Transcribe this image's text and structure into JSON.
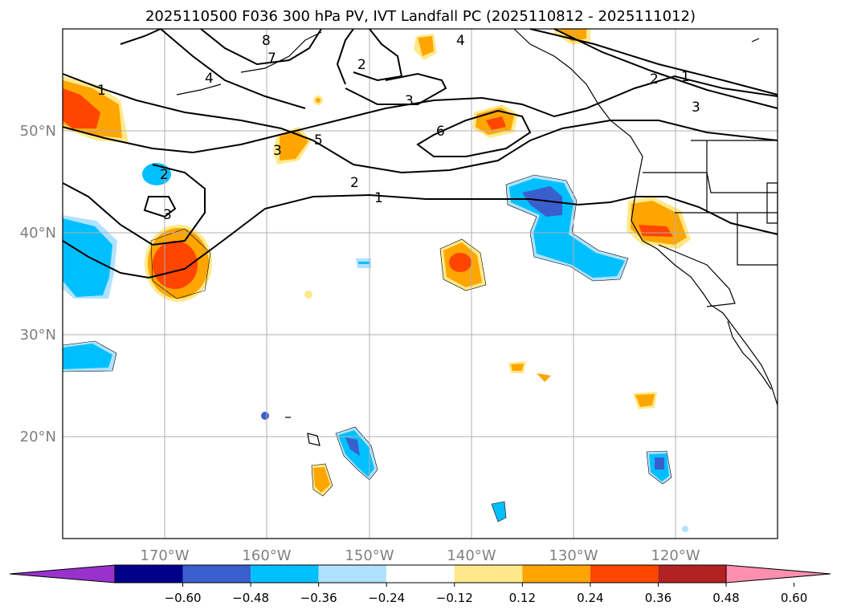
{
  "title": "2025110500 F036 300 hPa PV, IVT Landfall PC (2025110812 - 2025111012)",
  "map": {
    "lon_labels": [
      "170°W",
      "160°W",
      "150°W",
      "140°W",
      "130°W",
      "120°W"
    ],
    "lat_labels": [
      "50°N",
      "40°N",
      "30°N",
      "20°N"
    ]
  },
  "pv_contour_labels": [
    "1",
    "2",
    "3",
    "4",
    "5",
    "6",
    "7",
    "8"
  ],
  "colorbar": {
    "ticks": [
      "−0.60",
      "−0.48",
      "−0.36",
      "−0.24",
      "−0.12",
      "0.12",
      "0.24",
      "0.36",
      "0.48",
      "0.60"
    ],
    "colors": [
      "#9932cc",
      "#00008b",
      "#3a5fcd",
      "#00bfff",
      "#b0e2ff",
      "#ffffff",
      "#ffe98a",
      "#ffa500",
      "#ff4500",
      "#b22222",
      "#ff8fb1"
    ]
  },
  "colors": {
    "land_line": "#000000",
    "grid": "#b0b0b0",
    "axis_label": "#808080"
  }
}
